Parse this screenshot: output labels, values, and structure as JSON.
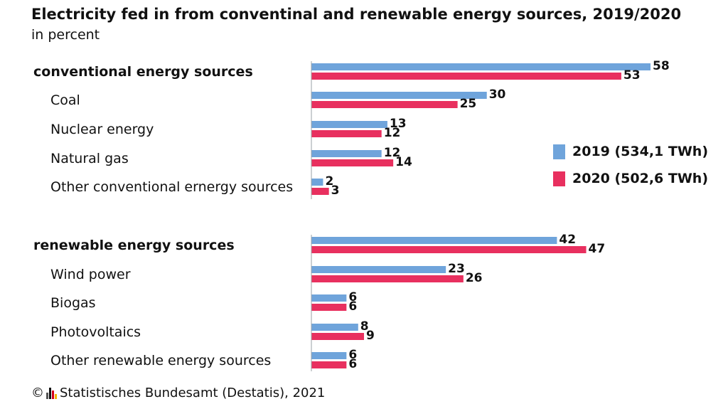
{
  "title": "Electricity fed in from conventinal and renewable energy sources, 2019/2020",
  "subtitle": "in percent",
  "source": "Statistisches Bundesamt (Destatis), 2021",
  "copyright_symbol": "©",
  "colors": {
    "series_2019": "#6fa4db",
    "series_2020": "#e8305f",
    "axis": "#9aa0a6"
  },
  "chart_data": {
    "type": "bar",
    "orientation": "horizontal",
    "categories": [
      "conventional energy sources",
      "Coal",
      "Nuclear energy",
      "Natural gas",
      "Other conventional ernergy sources",
      "renewable energy sources",
      "Wind power",
      "Biogas",
      "Photovoltaics",
      "Other renewable energy sources"
    ],
    "category_groups": [
      true,
      false,
      false,
      false,
      false,
      true,
      false,
      false,
      false,
      false
    ],
    "series": [
      {
        "name": "2019 (534,1 TWh)",
        "values": [
          58,
          30,
          13,
          12,
          2,
          42,
          23,
          6,
          8,
          6
        ]
      },
      {
        "name": "2020 (502,6 TWh)",
        "values": [
          53,
          25,
          12,
          14,
          3,
          47,
          26,
          6,
          9,
          6
        ]
      }
    ],
    "xlim": [
      0,
      58
    ],
    "grid": false,
    "legend_position": "right"
  }
}
